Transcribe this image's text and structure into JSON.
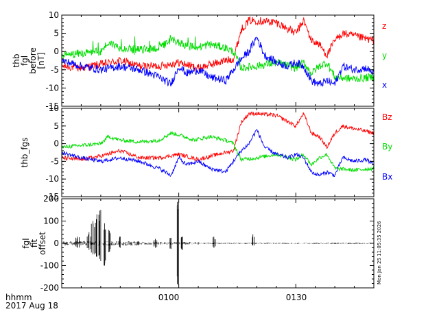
{
  "chart_data": [
    {
      "type": "line",
      "ylabel_lines": [
        "thb",
        "fgl",
        "before",
        "[nT]"
      ],
      "ylim": [
        -15,
        10
      ],
      "yticks": [
        -15,
        -10,
        -5,
        0,
        5,
        10
      ],
      "series": [
        {
          "name": "z",
          "color": "#ff0000",
          "approx_x_min": [
            0,
            5,
            10,
            15,
            20,
            25,
            30,
            35,
            40,
            44,
            46,
            48,
            50,
            55,
            60,
            62,
            64,
            66,
            68,
            70,
            72,
            76,
            80
          ],
          "approx_values": [
            -4,
            -4.5,
            -3.5,
            -2.5,
            -4,
            -4,
            -3,
            -4.5,
            -3,
            -2,
            6,
            8.5,
            8.5,
            8,
            5,
            8.5,
            3,
            2,
            -1,
            3,
            5,
            4,
            3
          ]
        },
        {
          "name": "y",
          "color": "#00dd00",
          "approx_x_min": [
            0,
            5,
            10,
            12,
            15,
            20,
            25,
            28,
            30,
            34,
            38,
            42,
            44,
            46,
            50,
            55,
            60,
            62,
            64,
            66,
            68,
            70,
            75,
            80
          ],
          "approx_values": [
            -1,
            -0.5,
            0,
            2.5,
            1,
            0.5,
            1,
            3,
            2.5,
            1,
            2,
            1,
            0,
            -4.5,
            -4,
            -3,
            -4.5,
            -3,
            -6,
            -4,
            -3,
            -7,
            -7.5,
            -7
          ]
        },
        {
          "name": "x",
          "color": "#0000ff",
          "approx_x_min": [
            0,
            5,
            10,
            15,
            20,
            25,
            28,
            30,
            32,
            35,
            38,
            42,
            44,
            46,
            48,
            50,
            52,
            55,
            58,
            60,
            62,
            64,
            66,
            68,
            70,
            72,
            75,
            78,
            80
          ],
          "approx_values": [
            -2.5,
            -4,
            -5,
            -4,
            -5,
            -7,
            -9,
            -4,
            -6,
            -5,
            -7,
            -8,
            -5,
            -2,
            0,
            4,
            -1,
            -3,
            -4,
            -3,
            -4,
            -8,
            -9,
            -8,
            -9,
            -4,
            -5,
            -4.5,
            -6
          ]
        }
      ],
      "legend_placement": "right"
    },
    {
      "type": "line",
      "ylabel_lines": [
        "thb_fgs"
      ],
      "ylim": [
        -15,
        10
      ],
      "yticks": [
        -15,
        -10,
        -5,
        0,
        5,
        10
      ],
      "series": [
        {
          "name": "Bz",
          "color": "#ff0000",
          "approx_x_min": [
            0,
            5,
            10,
            15,
            20,
            25,
            30,
            35,
            40,
            44,
            46,
            48,
            50,
            55,
            60,
            62,
            64,
            66,
            68,
            70,
            72,
            76,
            80
          ],
          "approx_values": [
            -4,
            -4.5,
            -3.5,
            -2,
            -4,
            -4,
            -3,
            -4.5,
            -3,
            -2,
            6,
            8.5,
            8.5,
            8,
            5,
            8.5,
            3,
            2,
            -1,
            3,
            5,
            4,
            3
          ]
        },
        {
          "name": "By",
          "color": "#00dd00",
          "approx_x_min": [
            0,
            5,
            10,
            12,
            15,
            20,
            25,
            28,
            30,
            34,
            38,
            42,
            44,
            46,
            50,
            55,
            60,
            62,
            64,
            66,
            68,
            70,
            75,
            80
          ],
          "approx_values": [
            -1,
            -0.5,
            0,
            2,
            1,
            0.5,
            1,
            3,
            2.5,
            1,
            2,
            1,
            0,
            -4.5,
            -4,
            -3,
            -4.5,
            -3,
            -6,
            -4,
            -3,
            -7,
            -7.5,
            -7
          ]
        },
        {
          "name": "Bx",
          "color": "#0000ff",
          "approx_x_min": [
            0,
            5,
            10,
            15,
            20,
            25,
            28,
            30,
            32,
            35,
            38,
            42,
            44,
            46,
            48,
            50,
            52,
            55,
            58,
            60,
            62,
            64,
            66,
            68,
            70,
            72,
            75,
            78,
            80
          ],
          "approx_values": [
            -2.5,
            -4,
            -5,
            -4,
            -5,
            -7,
            -9,
            -4,
            -6,
            -5,
            -7,
            -8,
            -5,
            -2,
            0,
            4,
            -1,
            -3,
            -4,
            -3,
            -4,
            -8,
            -9,
            -8,
            -9,
            -4,
            -5,
            -4.5,
            -6
          ]
        }
      ],
      "legend_placement": "right"
    },
    {
      "type": "line",
      "ylabel_lines": [
        "fgl",
        "fit",
        "offset"
      ],
      "ylim": [
        -200,
        200
      ],
      "yticks": [
        -200,
        -100,
        0,
        100,
        200
      ],
      "series": [
        {
          "name": "",
          "color": "#000000",
          "spikes": [
            {
              "x_min": 4,
              "lo": -20,
              "hi": 30
            },
            {
              "x_min": 7,
              "lo": -30,
              "hi": 50
            },
            {
              "x_min": 8,
              "lo": -50,
              "hi": 100
            },
            {
              "x_min": 9,
              "lo": -60,
              "hi": 130
            },
            {
              "x_min": 10,
              "lo": -80,
              "hi": 150
            },
            {
              "x_min": 11,
              "lo": -100,
              "hi": 90
            },
            {
              "x_min": 12,
              "lo": -40,
              "hi": 60
            },
            {
              "x_min": 15,
              "lo": -20,
              "hi": 30
            },
            {
              "x_min": 24,
              "lo": -20,
              "hi": 20
            },
            {
              "x_min": 28,
              "lo": -25,
              "hi": 25
            },
            {
              "x_min": 30,
              "lo": -190,
              "hi": 190
            },
            {
              "x_min": 31,
              "lo": -30,
              "hi": 30
            },
            {
              "x_min": 39,
              "lo": -20,
              "hi": 30
            },
            {
              "x_min": 49,
              "lo": -10,
              "hi": 40
            }
          ]
        }
      ]
    }
  ],
  "x_axis": {
    "range_minutes_after_0030": [
      0,
      80
    ],
    "tick_labels": [
      {
        "label": "0100",
        "minute": 30
      },
      {
        "label": "0130",
        "minute": 60
      }
    ],
    "title_lines": [
      "hhmm",
      "2017 Aug 18"
    ]
  },
  "timestamp_vertical": "Mon Jan 25 11:05:35 2026"
}
